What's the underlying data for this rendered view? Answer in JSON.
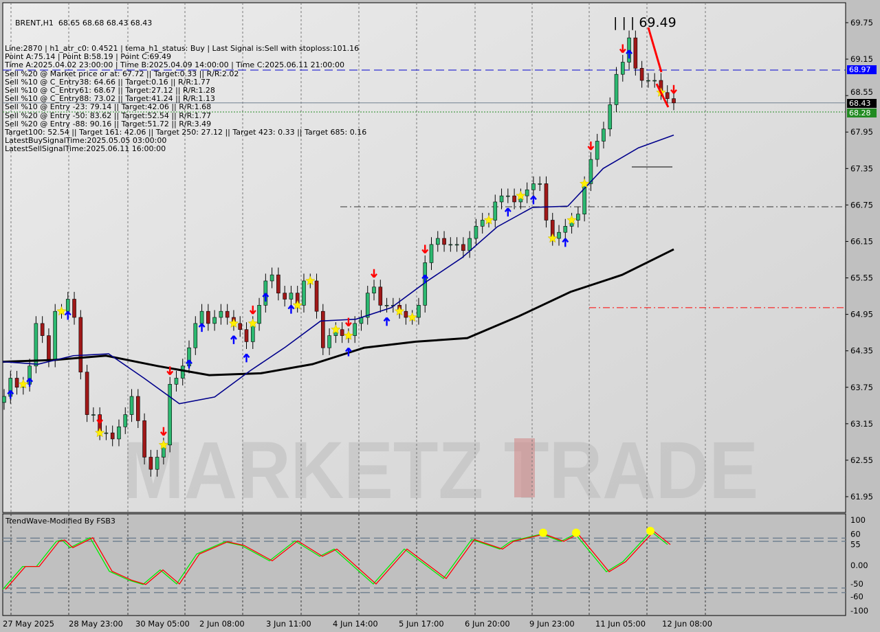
{
  "chart_data": {
    "type": "candlestick",
    "symbol_line": "BRENT,H1  68.65 68.68 68.43 68.43",
    "info_lines": [
      "Line:2870 | h1_atr_c0: 0.4521 | tema_h1_status: Buy | Last Signal is:Sell with stoploss:101.16",
      "Point A:75.14 | Point B:58.19 | Point C:69.49",
      "Time A:2025.04.02 23:00:00 | Time B:2025.04.09 14:00:00 | Time C:2025.06.11 21:00:00",
      "Sell %20 @ Market price or at: 67.72 || Target:0.33 || R/R:2.02",
      "Sell %10 @ C_Entry38: 64.66 || Target:0.16 || R/R:1.77",
      "Sell %10 @ C_Entry61: 68.67 || Target:27.12 || R/R:1.28",
      "Sell %10 @ C_Entry88: 73.02 || Target:41.24 || R/R:1.13",
      "Sell %10 @ Entry -23: 79.14 || Target:42.06 || R/R:1.68",
      "Sell %20 @ Entry -50: 83.62 || Target:52.54 || R/R:1.77",
      "Sell %20 @ Entry -88: 90.16 || Target:51.72 || R/R:3.49",
      "Target100: 52.54 || Target 161: 42.06 || Target 250: 27.12 || Target 423: 0.33 || Target 685: 0.16",
      "LatestBuySignalTime:2025.05.05 03:00:00",
      "LatestSellSignalTime:2025.06.11 16:00:00"
    ],
    "peak_label": "| | | 69.49",
    "watermark": "MARKETZ TRADE",
    "ylim": [
      61.65,
      70.05
    ],
    "y_ticks": [
      "69.75",
      "69.15",
      "68.55",
      "67.95",
      "67.35",
      "66.75",
      "66.15",
      "65.55",
      "64.95",
      "64.35",
      "63.75",
      "63.15",
      "62.55",
      "61.95"
    ],
    "x_ticks": [
      "27 May 2025",
      "28 May 23:00",
      "30 May 05:00",
      "2 Jun 08:00",
      "3 Jun 11:00",
      "4 Jun 14:00",
      "5 Jun 17:00",
      "6 Jun 20:00",
      "9 Jun 23:00",
      "11 Jun 05:00",
      "12 Jun 08:00"
    ],
    "price_labels": [
      {
        "value": 68.97,
        "text": "68.97",
        "color": "#0000ff"
      },
      {
        "value": 68.43,
        "text": "68.43",
        "color": "#000000"
      },
      {
        "value": 68.28,
        "text": "68.28",
        "color": "#228b22"
      }
    ],
    "closes": [
      63.6,
      63.9,
      63.75,
      63.8,
      64.1,
      64.8,
      64.6,
      64.2,
      65.0,
      65.0,
      65.2,
      64.9,
      64.0,
      63.3,
      63.3,
      63.0,
      63.0,
      62.9,
      63.1,
      63.3,
      63.6,
      63.2,
      62.6,
      62.4,
      62.6,
      62.8,
      63.8,
      63.9,
      64.1,
      64.4,
      64.8,
      65.0,
      64.8,
      64.9,
      65.0,
      64.9,
      64.8,
      64.7,
      64.5,
      64.8,
      65.1,
      65.5,
      65.6,
      65.3,
      65.2,
      65.3,
      65.1,
      65.5,
      65.5,
      65.0,
      64.4,
      64.6,
      64.7,
      64.6,
      64.6,
      64.8,
      64.9,
      65.3,
      65.4,
      65.1,
      65.1,
      65.1,
      65.0,
      64.9,
      64.9,
      65.1,
      65.8,
      66.1,
      66.2,
      66.1,
      66.1,
      66.1,
      66.0,
      66.2,
      66.4,
      66.5,
      66.5,
      66.8,
      66.9,
      66.9,
      66.8,
      66.9,
      67.0,
      67.1,
      67.1,
      66.5,
      66.2,
      66.3,
      66.4,
      66.5,
      66.6,
      67.1,
      67.5,
      67.8,
      68.0,
      68.4,
      68.9,
      69.1,
      69.5,
      69.0,
      68.8,
      68.8,
      68.8,
      68.6,
      68.5,
      68.43
    ],
    "ma_fast": [
      64.17,
      64.13,
      64.27,
      64.3,
      63.9,
      63.48,
      63.59,
      64.02,
      64.41,
      64.84,
      64.87,
      65.06,
      65.49,
      65.88,
      66.39,
      66.71,
      66.73,
      67.35,
      67.69,
      67.9
    ],
    "ma_slow": [
      64.17,
      64.2,
      64.27,
      64.1,
      63.95,
      63.98,
      64.13,
      64.4,
      64.5,
      64.56,
      64.92,
      65.32,
      65.6,
      66.02
    ],
    "levels": [
      {
        "value": 68.97,
        "style": "dash",
        "color": "#0000cd"
      },
      {
        "value": 68.43,
        "style": "solid",
        "color": "#708090"
      },
      {
        "value": 68.28,
        "style": "dot",
        "color": "#228b22"
      },
      {
        "value": 66.72,
        "style": "dashdot",
        "color": "#333333"
      },
      {
        "value": 65.06,
        "style": "dashdot",
        "color": "#ff0000"
      }
    ],
    "signals": {
      "buy_arrows": [
        1,
        4,
        10,
        29,
        31,
        36,
        38,
        41,
        45,
        54,
        60,
        66,
        79,
        83,
        88,
        98
      ],
      "sell_arrows": [
        15,
        25,
        26,
        39,
        54,
        58,
        66,
        92,
        97,
        105
      ],
      "stars": [
        3,
        9,
        15,
        25,
        36,
        39,
        46,
        48,
        52,
        54,
        62,
        64,
        76,
        81,
        86,
        89,
        91,
        103
      ]
    },
    "indicator": {
      "title": "TrendWave-Modified By FSB3",
      "ylim": [
        -100,
        100
      ],
      "y_ticks": [
        "100",
        "60",
        "55",
        "0.00",
        "-50",
        "-60",
        "-100"
      ],
      "levels": [
        60,
        53,
        -50,
        -60
      ],
      "wave": [
        -53,
        -2.5,
        -2.5,
        53,
        56,
        39,
        61,
        -13,
        -33,
        -42,
        -10,
        -41,
        25,
        52,
        44,
        10,
        54,
        20,
        36,
        -41,
        36,
        -29,
        57,
        36,
        53,
        63,
        69,
        53,
        69,
        -14,
        8,
        75,
        46
      ],
      "dots": [
        72,
        72,
        76
      ]
    }
  }
}
